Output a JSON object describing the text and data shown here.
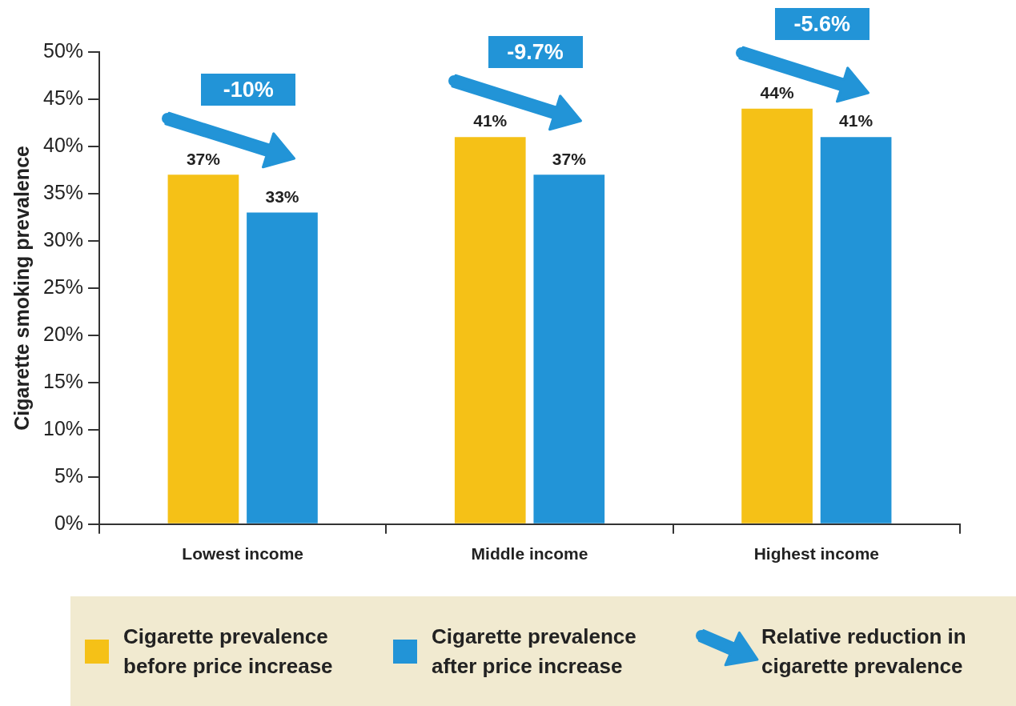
{
  "chart_data": {
    "type": "bar",
    "ylabel": "Cigarette smoking prevalence",
    "categories": [
      "Lowest income",
      "Middle income",
      "Highest income"
    ],
    "series": [
      {
        "name": "Cigarette prevalence before price increase",
        "color": "#f5c117",
        "values": [
          37,
          41,
          44
        ],
        "value_labels": [
          "37%",
          "41%",
          "44%"
        ]
      },
      {
        "name": "Cigarette prevalence after price increase",
        "color": "#2294d7",
        "values": [
          33,
          37,
          41
        ],
        "value_labels": [
          "33%",
          "37%",
          "41%"
        ]
      }
    ],
    "ylim": [
      0,
      50
    ],
    "yticks": [
      {
        "value": 0,
        "label": "0%"
      },
      {
        "value": 5,
        "label": "5%"
      },
      {
        "value": 10,
        "label": "10%"
      },
      {
        "value": 15,
        "label": "15%"
      },
      {
        "value": 20,
        "label": "20%"
      },
      {
        "value": 25,
        "label": "25%"
      },
      {
        "value": 30,
        "label": "30%"
      },
      {
        "value": 35,
        "label": "35%"
      },
      {
        "value": 40,
        "label": "40%"
      },
      {
        "value": 45,
        "label": "45%"
      },
      {
        "value": 50,
        "label": "50%"
      }
    ],
    "grid": false,
    "legend": "bottom",
    "annotations": [
      "-10%",
      "-9.7%",
      "-5.6%",
      "Relative reduction in cigarette prevalence"
    ]
  }
}
